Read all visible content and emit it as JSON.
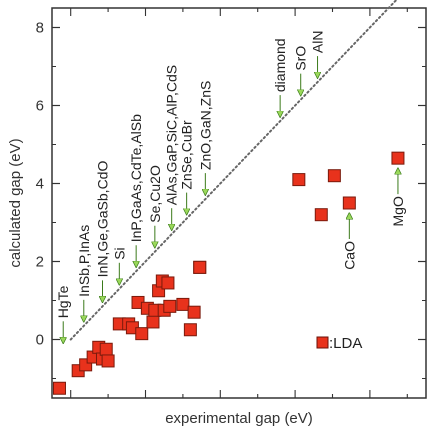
{
  "chart_data": {
    "type": "scatter",
    "xlabel": "experimental gap (eV)",
    "ylabel": "calculated gap (eV)",
    "xlim": [
      -0.5,
      9.5
    ],
    "ylim": [
      -1.5,
      8.5
    ],
    "yticks": [
      0,
      2,
      4,
      6,
      8
    ],
    "grid": false,
    "reference_line": {
      "style": "dotted",
      "from": [
        0,
        0
      ],
      "to": [
        9,
        9
      ]
    },
    "legend": {
      "label": ":LDA",
      "placement": "bottom-right",
      "marker": "square",
      "color": "#e8321c"
    },
    "series": [
      {
        "name": "LDA",
        "marker": "square",
        "color": "#e8321c",
        "x": [
          -0.3,
          0.2,
          0.4,
          0.6,
          0.75,
          0.85,
          0.95,
          1.0,
          1.3,
          1.55,
          1.65,
          1.8,
          1.9,
          2.05,
          2.2,
          2.25,
          2.35,
          2.45,
          2.5,
          2.6,
          2.65,
          3.0,
          3.2,
          3.3,
          3.45,
          3.45,
          6.1,
          6.7,
          7.05,
          7.45,
          8.75
        ],
        "y": [
          -1.25,
          -0.8,
          -0.65,
          -0.45,
          -0.2,
          -0.5,
          -0.25,
          -0.55,
          0.4,
          0.4,
          0.3,
          0.95,
          0.15,
          0.8,
          0.45,
          0.75,
          1.25,
          1.5,
          0.75,
          1.45,
          0.85,
          0.9,
          0.25,
          0.7,
          1.85,
          1.85,
          4.1,
          3.2,
          4.2,
          3.5,
          4.65
        ]
      }
    ],
    "annotations": [
      {
        "text": "HgTe",
        "x": -0.2
      },
      {
        "text": "InSb,P,InAs",
        "x": 0.35
      },
      {
        "text": "InN,Ge,GaSb,CdO",
        "x": 0.85
      },
      {
        "text": "Si",
        "x": 1.3
      },
      {
        "text": "InP,GaAs,CdTe,AlSb",
        "x": 1.75
      },
      {
        "text": "Se,Cu2O",
        "x": 2.25
      },
      {
        "text": "AlAs,GaP,SiC,AlP,CdS",
        "x": 2.7
      },
      {
        "text": "ZnSe,CuBr",
        "x": 3.1
      },
      {
        "text": "ZnO,GaN,ZnS",
        "x": 3.6
      },
      {
        "text": "diamond",
        "x": 5.6
      },
      {
        "text": "SrO",
        "x": 6.15
      },
      {
        "text": "AlN",
        "x": 6.6
      },
      {
        "text": "CaO",
        "x": 7.45
      },
      {
        "text": "MgO",
        "x": 8.75
      }
    ]
  }
}
